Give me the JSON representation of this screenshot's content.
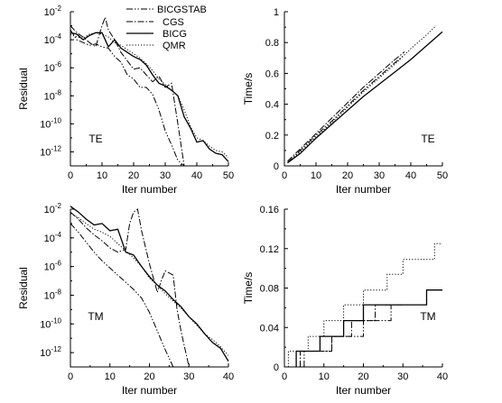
{
  "legend": {
    "placement": "top-center",
    "entries": [
      {
        "label": "BICGSTAB",
        "style": "dash-dot-dot"
      },
      {
        "label": "CGS",
        "style": "dash-dot"
      },
      {
        "label": "BICG",
        "style": "solid"
      },
      {
        "label": "QMR",
        "style": "dotted"
      }
    ]
  },
  "chart_data": [
    {
      "id": "te_residual",
      "type": "line",
      "xlabel": "Iter number",
      "ylabel": "Residual",
      "annotation": "TE",
      "xlim": [
        0,
        50
      ],
      "ylim_exp": [
        -13,
        -2
      ],
      "yscale": "log",
      "xticks": [
        "0",
        "10",
        "20",
        "30",
        "40",
        "50"
      ],
      "yticks": [
        {
          "base": "10",
          "exp": "-2"
        },
        {
          "base": "10",
          "exp": "-4"
        },
        {
          "base": "10",
          "exp": "-6"
        },
        {
          "base": "10",
          "exp": "-8"
        },
        {
          "base": "10",
          "exp": "-10"
        },
        {
          "base": "10",
          "exp": "-12"
        }
      ],
      "series": [
        {
          "name": "BICGSTAB",
          "x": [
            0,
            2,
            4,
            6,
            8,
            10,
            12,
            14,
            16,
            18,
            20,
            22,
            24,
            26,
            28,
            30,
            32,
            34,
            36
          ],
          "log10y": [
            -3.3,
            -4.0,
            -4.2,
            -4.4,
            -4.3,
            -4.5,
            -4.6,
            -5.2,
            -5.6,
            -6.5,
            -6.8,
            -7.4,
            -7.4,
            -7.9,
            -9.0,
            -10.5,
            -11.5,
            -12.6,
            -13.3
          ]
        },
        {
          "name": "CGS",
          "x": [
            0,
            2,
            4,
            6,
            8,
            10,
            11,
            12,
            14,
            16,
            18,
            20,
            22,
            24,
            26,
            28,
            30,
            32,
            34,
            36
          ],
          "log10y": [
            -3.0,
            -3.5,
            -3.8,
            -4.2,
            -4.5,
            -3.0,
            -2.4,
            -3.3,
            -4.0,
            -4.9,
            -5.5,
            -6.1,
            -6.0,
            -6.5,
            -7.0,
            -6.6,
            -7.4,
            -7.1,
            -10.0,
            -13.2
          ]
        },
        {
          "name": "BICG",
          "x": [
            0,
            2,
            4,
            6,
            8,
            10,
            12,
            14,
            16,
            18,
            20,
            22,
            24,
            26,
            28,
            30,
            32,
            34,
            36,
            38,
            40,
            42,
            44,
            46,
            48,
            50
          ],
          "log10y": [
            -3.5,
            -3.6,
            -4.0,
            -3.7,
            -3.5,
            -3.5,
            -4.5,
            -4.0,
            -4.6,
            -4.9,
            -5.2,
            -5.4,
            -5.8,
            -6.5,
            -7.1,
            -7.3,
            -7.6,
            -8.0,
            -9.5,
            -10.3,
            -11.3,
            -11.2,
            -11.8,
            -12.1,
            -12.2,
            -12.7
          ]
        },
        {
          "name": "QMR",
          "x": [
            0,
            2,
            4,
            6,
            8,
            10,
            12,
            14,
            16,
            18,
            20,
            22,
            24,
            26,
            28,
            30,
            32,
            34,
            36,
            38,
            40,
            42,
            44,
            46,
            48,
            50
          ],
          "log10y": [
            -3.6,
            -3.8,
            -3.9,
            -3.6,
            -3.5,
            -3.6,
            -3.8,
            -4.2,
            -4.4,
            -4.7,
            -5.0,
            -5.3,
            -5.7,
            -6.2,
            -6.8,
            -7.2,
            -7.6,
            -8.0,
            -9.0,
            -10.2,
            -11.0,
            -11.2,
            -11.6,
            -11.9,
            -12.0,
            -12.4
          ]
        }
      ]
    },
    {
      "id": "te_time",
      "type": "line",
      "xlabel": "Iter number",
      "ylabel": "Time/s",
      "annotation": "TE",
      "xlim": [
        0,
        50
      ],
      "ylim": [
        0,
        1.0
      ],
      "xticks": [
        "0",
        "10",
        "20",
        "30",
        "40",
        "50"
      ],
      "yticks": [
        "0",
        "0.2",
        "0.4",
        "0.6",
        "0.8",
        "1"
      ],
      "series": [
        {
          "name": "BICGSTAB",
          "x": [
            1,
            5,
            10,
            15,
            20,
            25,
            30,
            35,
            38
          ],
          "y": [
            0.02,
            0.1,
            0.2,
            0.29,
            0.39,
            0.49,
            0.58,
            0.67,
            0.72
          ]
        },
        {
          "name": "CGS",
          "x": [
            1,
            5,
            10,
            15,
            20,
            25,
            30,
            35,
            38
          ],
          "y": [
            0.03,
            0.11,
            0.21,
            0.31,
            0.41,
            0.51,
            0.6,
            0.69,
            0.74
          ]
        },
        {
          "name": "BICG",
          "x": [
            1,
            5,
            10,
            15,
            20,
            25,
            30,
            35,
            40,
            45,
            50
          ],
          "y": [
            0.02,
            0.08,
            0.18,
            0.27,
            0.36,
            0.45,
            0.53,
            0.61,
            0.69,
            0.78,
            0.87
          ]
        },
        {
          "name": "QMR",
          "x": [
            1,
            5,
            10,
            15,
            20,
            25,
            30,
            35,
            40,
            45,
            48
          ],
          "y": [
            0.02,
            0.09,
            0.19,
            0.28,
            0.38,
            0.48,
            0.57,
            0.66,
            0.76,
            0.85,
            0.91
          ]
        }
      ]
    },
    {
      "id": "tm_residual",
      "type": "line",
      "xlabel": "Iter number",
      "ylabel": "Residual",
      "annotation": "TM",
      "xlim": [
        0,
        40
      ],
      "ylim_exp": [
        -13,
        -2
      ],
      "yscale": "log",
      "xticks": [
        "0",
        "10",
        "20",
        "30",
        "40"
      ],
      "yticks": [
        {
          "base": "10",
          "exp": "-2"
        },
        {
          "base": "10",
          "exp": "-4"
        },
        {
          "base": "10",
          "exp": "-6"
        },
        {
          "base": "10",
          "exp": "-8"
        },
        {
          "base": "10",
          "exp": "-10"
        },
        {
          "base": "10",
          "exp": "-12"
        }
      ],
      "series": [
        {
          "name": "BICGSTAB",
          "x": [
            0,
            2,
            4,
            6,
            8,
            10,
            12,
            14,
            16,
            18,
            20,
            22,
            24,
            26
          ],
          "log10y": [
            -3.0,
            -3.6,
            -4.3,
            -5.0,
            -5.6,
            -6.1,
            -6.6,
            -7.1,
            -7.6,
            -8.2,
            -9.2,
            -10.5,
            -11.8,
            -13.1
          ]
        },
        {
          "name": "CGS",
          "x": [
            0,
            2,
            4,
            6,
            8,
            10,
            12,
            14,
            15,
            16,
            17,
            18,
            20,
            22,
            23,
            24,
            26,
            27,
            28,
            30
          ],
          "log10y": [
            -2.2,
            -2.7,
            -3.3,
            -3.8,
            -4.2,
            -4.7,
            -5.0,
            -4.8,
            -3.0,
            -2.2,
            -2.0,
            -3.5,
            -5.8,
            -7.8,
            -7.0,
            -6.3,
            -6.6,
            -9.0,
            -10.5,
            -13.2
          ]
        },
        {
          "name": "BICG",
          "x": [
            0,
            2,
            4,
            6,
            8,
            10,
            12,
            14,
            16,
            18,
            20,
            22,
            24,
            26,
            28,
            30,
            32,
            34,
            36,
            38,
            40
          ],
          "log10y": [
            -1.8,
            -2.2,
            -2.7,
            -3.1,
            -3.0,
            -3.5,
            -3.4,
            -5.0,
            -5.2,
            -6.0,
            -6.7,
            -7.3,
            -7.7,
            -8.3,
            -8.8,
            -9.5,
            -10.0,
            -10.7,
            -11.3,
            -11.7,
            -12.6
          ]
        },
        {
          "name": "QMR",
          "x": [
            0,
            2,
            4,
            6,
            8,
            10,
            12,
            14,
            16,
            18,
            20,
            22,
            24,
            26,
            28,
            30,
            32,
            34,
            36,
            38,
            40
          ],
          "log10y": [
            -2.3,
            -2.6,
            -3.0,
            -3.4,
            -3.6,
            -3.9,
            -4.4,
            -4.9,
            -5.4,
            -6.0,
            -6.8,
            -7.3,
            -7.9,
            -8.4,
            -8.9,
            -9.5,
            -10.1,
            -10.7,
            -11.1,
            -11.6,
            -12.2
          ]
        }
      ]
    },
    {
      "id": "tm_time",
      "type": "line",
      "xlabel": "Iter number",
      "ylabel": "Time/s",
      "annotation": "TM",
      "xlim": [
        0,
        40
      ],
      "ylim": [
        0,
        0.16
      ],
      "xticks": [
        "0",
        "10",
        "20",
        "30",
        "40"
      ],
      "yticks": [
        "0",
        "0.04",
        "0.08",
        "0.12",
        "0.16"
      ],
      "series": [
        {
          "name": "BICGSTAB",
          "x": [
            5,
            5,
            12,
            12,
            20,
            20,
            27,
            27
          ],
          "y": [
            0,
            0.016,
            0.016,
            0.031,
            0.031,
            0.047,
            0.047,
            0.063
          ]
        },
        {
          "name": "CGS",
          "x": [
            4,
            4,
            12,
            12,
            17,
            17,
            23,
            23,
            30,
            30
          ],
          "y": [
            0,
            0.016,
            0.016,
            0.031,
            0.031,
            0.047,
            0.047,
            0.063,
            0.063,
            0.063
          ]
        },
        {
          "name": "BICG",
          "x": [
            3,
            3,
            9,
            9,
            15,
            15,
            20,
            20,
            26,
            26,
            36,
            36,
            40
          ],
          "y": [
            0,
            0.016,
            0.016,
            0.031,
            0.031,
            0.047,
            0.047,
            0.063,
            0.063,
            0.063,
            0.063,
            0.078,
            0.078
          ]
        },
        {
          "name": "QMR",
          "x": [
            1,
            1,
            6,
            6,
            10,
            10,
            15,
            15,
            20,
            20,
            26,
            26,
            30,
            30,
            35,
            35,
            38,
            38,
            40
          ],
          "y": [
            0,
            0.016,
            0.016,
            0.031,
            0.031,
            0.047,
            0.047,
            0.063,
            0.063,
            0.078,
            0.078,
            0.094,
            0.094,
            0.109,
            0.109,
            0.109,
            0.109,
            0.125,
            0.125
          ]
        }
      ]
    }
  ]
}
